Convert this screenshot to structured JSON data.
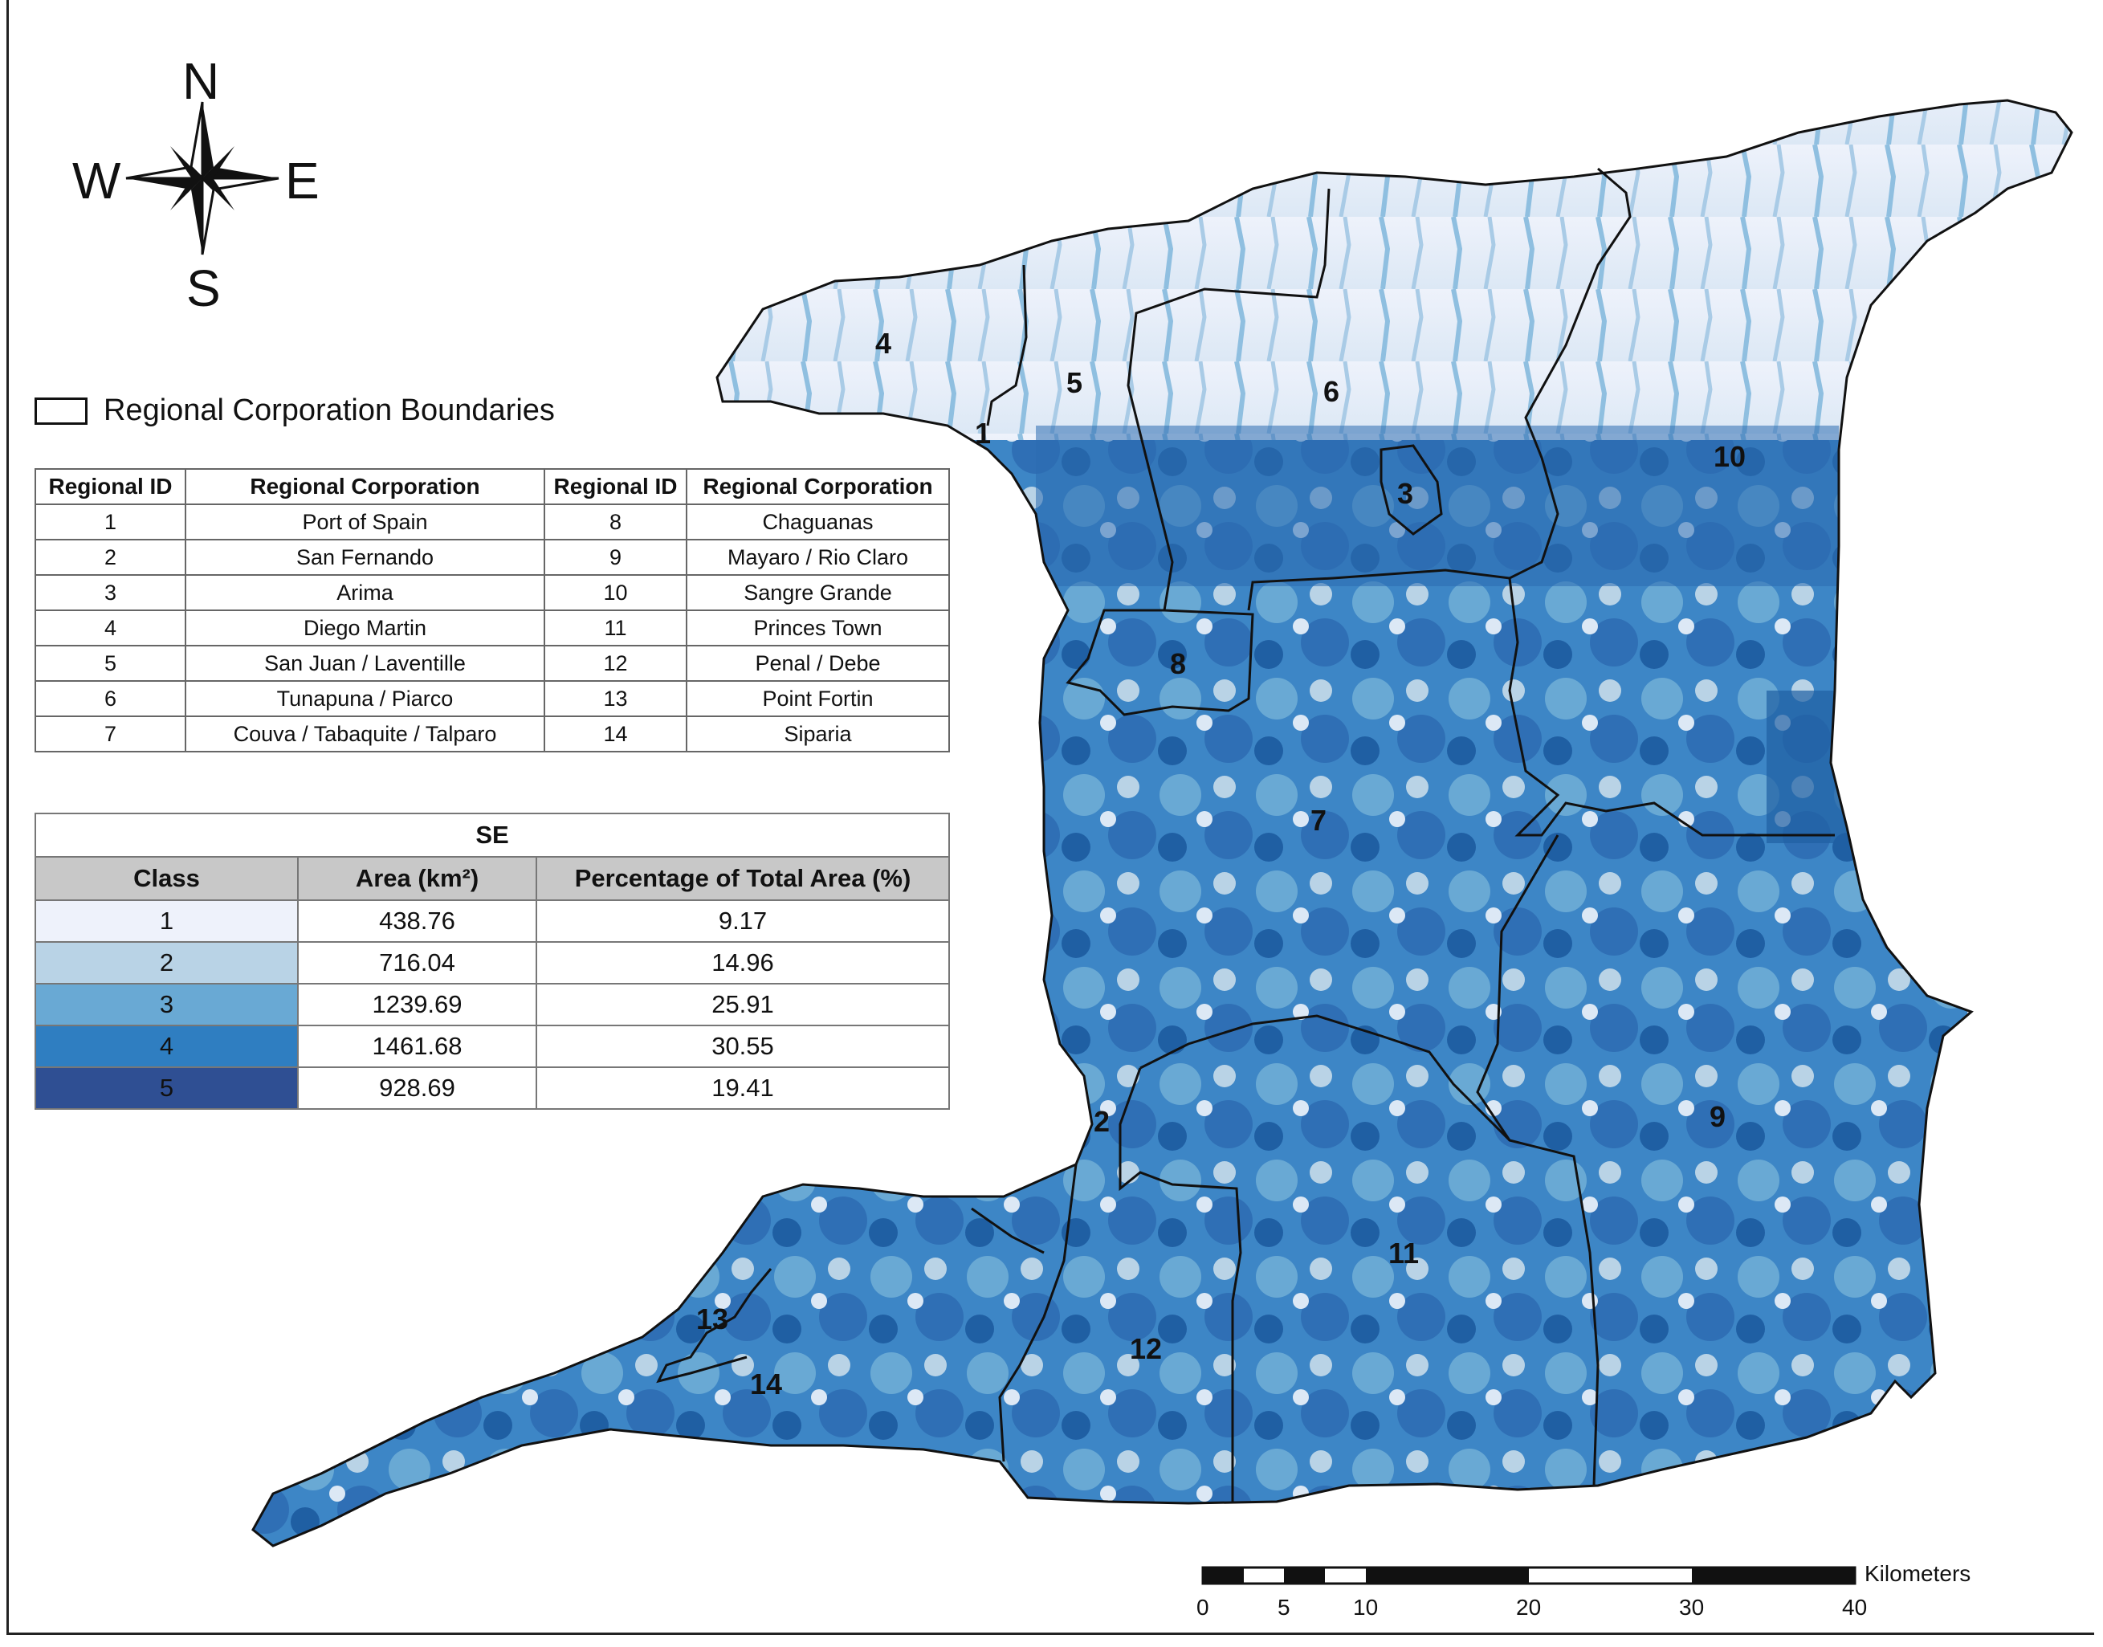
{
  "compass": {
    "n": "N",
    "s": "S",
    "e": "E",
    "w": "W"
  },
  "legend": {
    "boundary_label": "Regional Corporation Boundaries"
  },
  "region_table": {
    "headers": [
      "Regional ID",
      "Regional Corporation",
      "Regional ID",
      "Regional Corporation"
    ],
    "rows": [
      [
        "1",
        "Port of Spain",
        "8",
        "Chaguanas"
      ],
      [
        "2",
        "San Fernando",
        "9",
        "Mayaro / Rio Claro"
      ],
      [
        "3",
        "Arima",
        "10",
        "Sangre Grande"
      ],
      [
        "4",
        "Diego Martin",
        "11",
        "Princes Town"
      ],
      [
        "5",
        "San Juan / Laventille",
        "12",
        "Penal / Debe"
      ],
      [
        "6",
        "Tunapuna / Piarco",
        "13",
        "Point Fortin"
      ],
      [
        "7",
        "Couva / Tabaquite / Talparo",
        "14",
        "Siparia"
      ]
    ]
  },
  "se_table": {
    "title": "SE",
    "headers": [
      "Class",
      "Area (km²)",
      "Percentage of Total Area (%)"
    ],
    "rows": [
      {
        "class": "1",
        "area": "438.76",
        "pct": "9.17",
        "color": "#eef2fb"
      },
      {
        "class": "2",
        "area": "716.04",
        "pct": "14.96",
        "color": "#b9d3e6"
      },
      {
        "class": "3",
        "area": "1239.69",
        "pct": "25.91",
        "color": "#69a9d4"
      },
      {
        "class": "4",
        "area": "1461.68",
        "pct": "30.55",
        "color": "#2f7ec1"
      },
      {
        "class": "5",
        "area": "928.69",
        "pct": "19.41",
        "color": "#2f4f93"
      }
    ]
  },
  "map_labels": [
    "1",
    "2",
    "3",
    "4",
    "5",
    "6",
    "7",
    "8",
    "9",
    "10",
    "11",
    "12",
    "13",
    "14"
  ],
  "scale_bar": {
    "unit": "Kilometers",
    "ticks": [
      "0",
      "5",
      "10",
      "20",
      "30",
      "40"
    ]
  }
}
